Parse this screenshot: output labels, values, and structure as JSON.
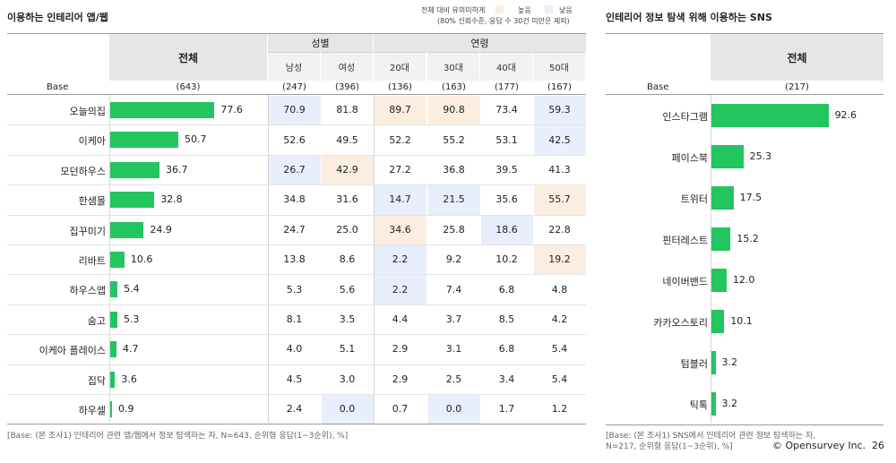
{
  "left": {
    "title": "이용하는 인테리어 앱/웹",
    "legend": {
      "desc_line1": "전체 대비 유의미하게",
      "desc_line2": "(80% 신뢰수준, 응답 수 30건 미만은 제외)",
      "high_label": "높음",
      "low_label": "낮음",
      "high_color": "#fbeee0",
      "low_color": "#e8eefb"
    },
    "total_header": "전체",
    "group_gender": "성별",
    "group_age": "연령",
    "columns": [
      "남성",
      "여성",
      "20대",
      "30대",
      "40대",
      "50대"
    ],
    "base_label": "Base",
    "base_total": "(643)",
    "base_columns": [
      "(247)",
      "(396)",
      "(136)",
      "(163)",
      "(177)",
      "(167)"
    ],
    "footnote": "[Base: (본 조사1) 인테리어 관련 앱/웹에서 정보 탐색하는 자, N=643, 순위형 응답(1~3순위), %]"
  },
  "right": {
    "title": "인테리어 정보 탐색 위해 이용하는 SNS",
    "total_header": "전체",
    "base_label": "Base",
    "base_total": "(217)",
    "footnote_line1": "[Base: (본 조사1) SNS에서 인테리어 관련 정보 탐색하는 자,",
    "footnote_line2": "N=217, 순위형 응답(1~3순위), %]"
  },
  "copyright": "© Opensurvey Inc.",
  "page_number": "26",
  "colors": {
    "bar": "#22c55e",
    "header": "#e6e6e6",
    "subheader": "#f2f2f2"
  },
  "chart_data": [
    {
      "type": "bar",
      "title": "이용하는 인테리어 앱/웹",
      "categories": [
        "오늘의집",
        "이케아",
        "모던하우스",
        "한샘몰",
        "집꾸미기",
        "리바트",
        "하우스앱",
        "숨고",
        "이케아 플레이스",
        "집닥",
        "하우셀"
      ],
      "values": [
        77.6,
        50.7,
        36.7,
        32.8,
        24.9,
        10.6,
        5.4,
        5.3,
        4.7,
        3.6,
        0.9
      ],
      "value_labels": [
        "77.6",
        "50.7",
        "36.7",
        "32.8",
        "24.9",
        "10.6",
        "5.4",
        "5.3",
        "4.7",
        "3.6",
        "0.9"
      ],
      "xlim": [
        0,
        100
      ],
      "table": {
        "columns": [
          "남성",
          "여성",
          "20대",
          "30대",
          "40대",
          "50대"
        ],
        "rows": [
          [
            "70.9",
            "81.8",
            "89.7",
            "90.8",
            "73.4",
            "59.3"
          ],
          [
            "52.6",
            "49.5",
            "52.2",
            "55.2",
            "53.1",
            "42.5"
          ],
          [
            "26.7",
            "42.9",
            "27.2",
            "36.8",
            "39.5",
            "41.3"
          ],
          [
            "34.8",
            "31.6",
            "14.7",
            "21.5",
            "35.6",
            "55.7"
          ],
          [
            "24.7",
            "25.0",
            "34.6",
            "25.8",
            "18.6",
            "22.8"
          ],
          [
            "13.8",
            "8.6",
            "2.2",
            "9.2",
            "10.2",
            "19.2"
          ],
          [
            "5.3",
            "5.6",
            "2.2",
            "7.4",
            "6.8",
            "4.8"
          ],
          [
            "8.1",
            "3.5",
            "4.4",
            "3.7",
            "8.5",
            "4.2"
          ],
          [
            "4.0",
            "5.1",
            "2.9",
            "3.1",
            "6.8",
            "5.4"
          ],
          [
            "4.5",
            "3.0",
            "2.9",
            "2.5",
            "3.4",
            "5.4"
          ],
          [
            "2.4",
            "0.0",
            "0.7",
            "0.0",
            "1.7",
            "1.2"
          ]
        ],
        "significance": [
          [
            "low",
            "",
            "high",
            "high",
            "",
            "low"
          ],
          [
            "",
            "",
            "",
            "",
            "",
            "low"
          ],
          [
            "low",
            "high",
            "",
            "",
            "",
            ""
          ],
          [
            "",
            "",
            "low",
            "low",
            "",
            "high"
          ],
          [
            "",
            "",
            "high",
            "",
            "low",
            ""
          ],
          [
            "",
            "",
            "low",
            "",
            "",
            "high"
          ],
          [
            "",
            "",
            "low",
            "",
            "",
            ""
          ],
          [
            "",
            "",
            "",
            "",
            "",
            ""
          ],
          [
            "",
            "",
            "",
            "",
            "",
            ""
          ],
          [
            "",
            "",
            "",
            "",
            "",
            ""
          ],
          [
            "",
            "low",
            "",
            "low",
            "",
            ""
          ]
        ]
      }
    },
    {
      "type": "bar",
      "title": "인테리어 정보 탐색 위해 이용하는 SNS",
      "categories": [
        "인스타그램",
        "페이스북",
        "트위터",
        "핀터레스트",
        "네이버밴드",
        "카카오스토리",
        "텀블러",
        "틱톡"
      ],
      "values": [
        92.6,
        25.3,
        17.5,
        15.2,
        12.0,
        10.1,
        3.2,
        3.2
      ],
      "value_labels": [
        "92.6",
        "25.3",
        "17.5",
        "15.2",
        "12.0",
        "10.1",
        "3.2",
        "3.2"
      ],
      "xlim": [
        0,
        100
      ]
    }
  ]
}
